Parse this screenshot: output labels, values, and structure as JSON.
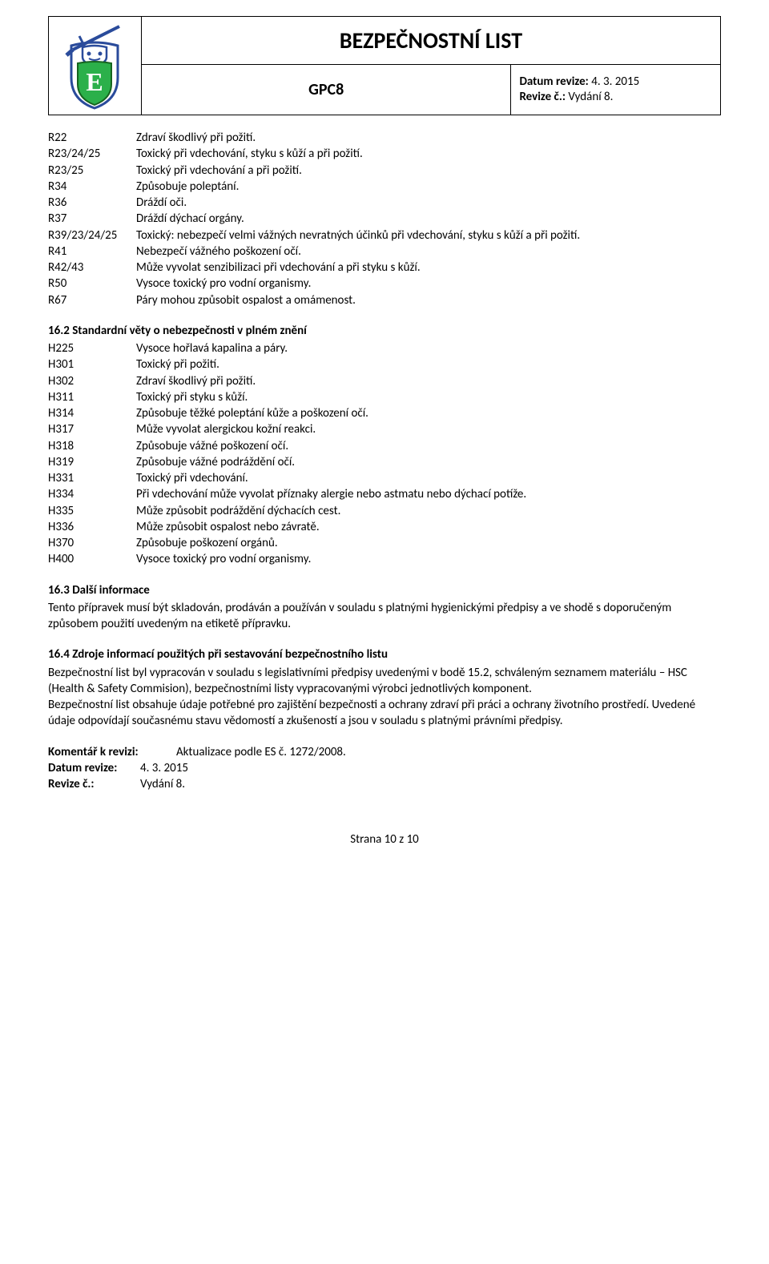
{
  "header": {
    "title": "BEZPEČNOSTNÍ LIST",
    "code": "GPC8",
    "revision_date_label": "Datum revize:",
    "revision_date": "4. 3. 2015",
    "revision_no_label": "Revize č.:",
    "revision_no": "Vydání 8."
  },
  "r_phrases": [
    {
      "code": "R22",
      "text": "Zdraví škodlivý při požití."
    },
    {
      "code": "R23/24/25",
      "text": "Toxický při vdechování, styku s kůží a při požití."
    },
    {
      "code": "R23/25",
      "text": "Toxický při vdechování a při požití."
    },
    {
      "code": "R34",
      "text": "Způsobuje poleptání."
    },
    {
      "code": "R36",
      "text": "Dráždí oči."
    },
    {
      "code": "R37",
      "text": "Dráždí dýchací orgány."
    },
    {
      "code": "R39/23/24/25",
      "text": "Toxický: nebezpečí velmi vážných nevratných účinků při vdechování, styku s kůží a při požití."
    },
    {
      "code": "R41",
      "text": "Nebezpečí vážného poškození očí."
    },
    {
      "code": "R42/43",
      "text": "Může vyvolat senzibilizaci při vdechování a při styku s kůží."
    },
    {
      "code": "R50",
      "text": "Vysoce toxický pro vodní organismy."
    },
    {
      "code": "R67",
      "text": "Páry mohou způsobit ospalost a omámenost."
    }
  ],
  "section_16_2": {
    "heading": "16.2  Standardní věty o nebezpečnosti v plném znění",
    "items": [
      {
        "code": "H225",
        "text": "Vysoce hořlavá kapalina a páry."
      },
      {
        "code": "H301",
        "text": "Toxický při požití."
      },
      {
        "code": "H302",
        "text": "Zdraví škodlivý při požití."
      },
      {
        "code": "H311",
        "text": "Toxický při styku s kůží."
      },
      {
        "code": "H314",
        "text": "Způsobuje těžké poleptání kůže a poškození očí."
      },
      {
        "code": "H317",
        "text": "Může vyvolat alergickou kožní reakci."
      },
      {
        "code": "H318",
        "text": "Způsobuje vážné poškození očí."
      },
      {
        "code": "H319",
        "text": "Způsobuje vážné podráždění očí."
      },
      {
        "code": "H331",
        "text": "Toxický při vdechování."
      },
      {
        "code": "H334",
        "text": "Při vdechování může vyvolat příznaky alergie nebo astmatu nebo dýchací potíže."
      },
      {
        "code": "H335",
        "text": "Může způsobit podráždění dýchacích cest."
      },
      {
        "code": "H336",
        "text": "Může způsobit ospalost nebo závratě."
      },
      {
        "code": "H370",
        "text": "Způsobuje poškození orgánů."
      },
      {
        "code": "H400",
        "text": "Vysoce toxický pro vodní organismy."
      }
    ]
  },
  "section_16_3": {
    "heading": "16.3  Další informace",
    "text": "Tento přípravek musí být skladován, prodáván a používán v souladu s platnými hygienickými předpisy a ve shodě s doporučeným způsobem použití uvedeným na etiketě přípravku."
  },
  "section_16_4": {
    "heading": "16.4  Zdroje informací použitých při sestavování bezpečnostního listu",
    "para1": "Bezpečnostní list byl vypracován v souladu s legislativními předpisy uvedenými v bodě 15.2, schváleným seznamem materiálu – HSC (Health & Safety Commision), bezpečnostními listy vypracovanými výrobci jednotlivých komponent.",
    "para2": "Bezpečnostní list obsahuje údaje potřebné pro zajištění bezpečnosti a ochrany zdraví při práci a ochrany životního prostředí. Uvedené údaje odpovídají současnému stavu vědomostí a zkušeností a jsou v souladu s platnými právními předpisy."
  },
  "footer": {
    "comment_label": "Komentář k revizi:",
    "comment": "Aktualizace podle ES č. 1272/2008.",
    "date_label": "Datum revize:",
    "date": "4. 3. 2015",
    "rev_label": "Revize č.:",
    "rev": "Vydání 8."
  },
  "page_number": "Strana 10 z 10",
  "logo_colors": {
    "shield_outer": "#2a4b9b",
    "shield_green": "#2bb04a",
    "sword": "#2a4b9b"
  }
}
